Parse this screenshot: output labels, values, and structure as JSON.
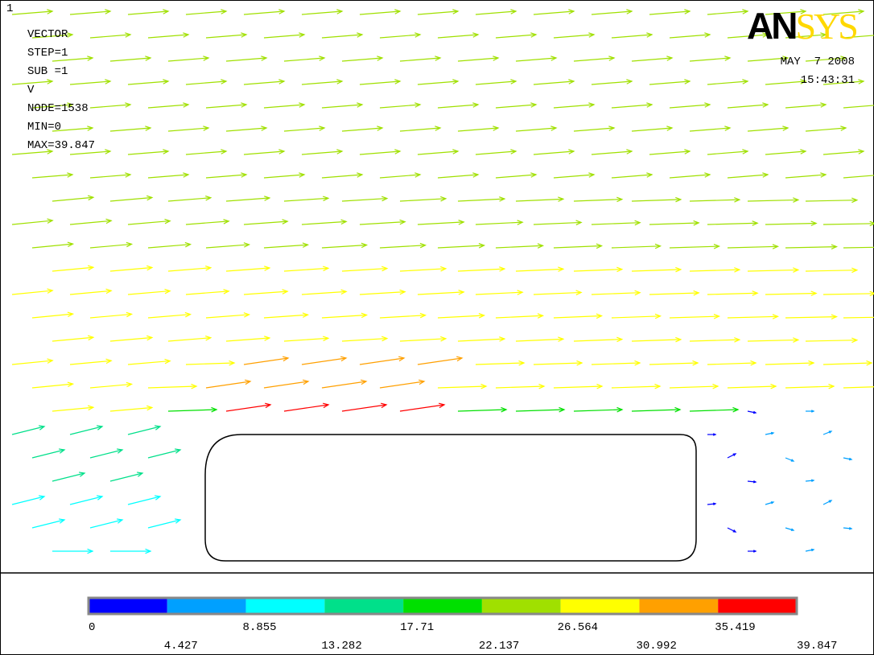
{
  "window_number": "1",
  "info": [
    "VECTOR",
    "STEP=1",
    "SUB =1",
    "V",
    "NODE=1538",
    "MIN=0",
    "MAX=39.847"
  ],
  "logo": [
    "AN",
    "SYS"
  ],
  "date": "MAY  7 2008",
  "time": "15:43:31",
  "legend": {
    "colors": [
      "#0000ff",
      "#00a0ff",
      "#00ffff",
      "#00e08a",
      "#00e000",
      "#a0e000",
      "#ffff00",
      "#ffa000",
      "#ff0000"
    ],
    "labels": [
      "0",
      "4.427",
      "8.855",
      "13.282",
      "17.71",
      "22.137",
      "26.564",
      "30.992",
      "35.419",
      "39.847"
    ]
  }
}
